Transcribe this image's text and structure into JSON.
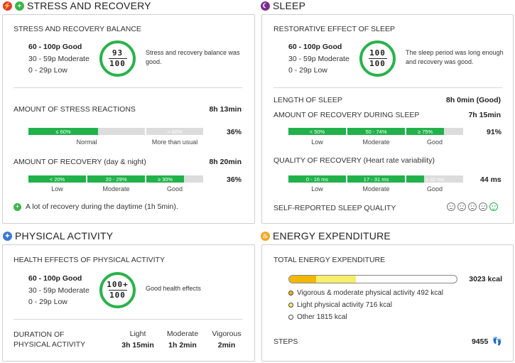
{
  "stress": {
    "title": "STRESS AND RECOVERY",
    "balance_heading": "STRESS AND RECOVERY BALANCE",
    "scale": [
      "60 - 100p Good",
      "30 - 59p Moderate",
      "0 - 29p Low"
    ],
    "score_top": "93",
    "score_bottom": "100",
    "score_note": "Stress and recovery balance was good.",
    "stress_reactions_label": "AMOUNT OF STRESS REACTIONS",
    "stress_reactions_value": "8h 13min",
    "stress_bar": {
      "seg1": "≤ 60%",
      "seg2": "> 60%",
      "cap1": "Normal",
      "cap2": "More than usual",
      "percent": "36%",
      "fill_fraction": 0.36
    },
    "recovery_label": "AMOUNT OF RECOVERY (day & night)",
    "recovery_value": "8h 20min",
    "recovery_bar": {
      "seg1": "< 20%",
      "seg2": "20 - 29%",
      "seg3": "≥ 30%",
      "cap1": "Low",
      "cap2": "Moderate",
      "cap3": "Good",
      "percent": "36%",
      "fill_fraction": 0.36
    },
    "tip": "A lot of recovery during the daytime (1h 5min)."
  },
  "sleep": {
    "title": "SLEEP",
    "restorative_heading": "RESTORATIVE EFFECT OF SLEEP",
    "scale": [
      "60 - 100p Good",
      "30 - 59p Moderate",
      "0 - 29p Low"
    ],
    "score_top": "100",
    "score_bottom": "100",
    "score_note": "The sleep period was long enough and recovery was good.",
    "length_label": "LENGTH OF SLEEP",
    "length_value": "8h 0min (Good)",
    "recovery_label": "AMOUNT OF RECOVERY DURING SLEEP",
    "recovery_value": "7h 15min",
    "recovery_bar": {
      "seg1": "< 50%",
      "seg2": "50 - 74%",
      "seg3": "≥ 75%",
      "cap1": "Low",
      "cap2": "Moderate",
      "cap3": "Good",
      "percent": "91%",
      "fill_fraction": 0.91
    },
    "quality_label": "QUALITY OF RECOVERY (Heart rate variability)",
    "quality_bar": {
      "seg1": "0 - 16 ms",
      "seg2": "17 - 31 ms",
      "seg3": "≥ 32 ms",
      "cap1": "Low",
      "cap2": "Moderate",
      "cap3": "Good",
      "value": "44 ms",
      "fill_fraction": 0.78
    },
    "self_reported_label": "SELF-REPORTED SLEEP QUALITY",
    "self_reported_selected_index": 4
  },
  "activity": {
    "title": "PHYSICAL ACTIVITY",
    "health_heading": "HEALTH EFFECTS OF PHYSICAL ACTIVITY",
    "scale": [
      "60 - 100p Good",
      "30 - 59p Moderate",
      "0 - 29p Low"
    ],
    "score_top": "100+",
    "score_bottom": "100",
    "score_note": "Good health effects",
    "duration_label_1": "DURATION OF",
    "duration_label_2": "PHYSICAL ACTIVITY",
    "cols": [
      {
        "label": "Light",
        "value": "3h 15min"
      },
      {
        "label": "Moderate",
        "value": "1h 2min"
      },
      {
        "label": "Vigorous",
        "value": "2min"
      }
    ]
  },
  "energy": {
    "title": "ENERGY EXPENDITURE",
    "total_heading": "TOTAL ENERGY EXPENDITURE",
    "total_value": "3023 kcal",
    "bar_fractions": {
      "vigorous": 0.163,
      "light": 0.237,
      "other": 0.6
    },
    "legend": [
      {
        "text": "Vigorous & moderate physical activity 492 kcal",
        "color": "#f2b705"
      },
      {
        "text": "Light physical activity 716 kcal",
        "color": "#f7ee6b"
      },
      {
        "text": "Other 1815 kcal",
        "color": "#ffffff"
      }
    ],
    "steps_label": "STEPS",
    "steps_value": "9455"
  },
  "colors": {
    "green": "#21b14a",
    "grey": "#dcdcdc",
    "ring": "#2bb24c"
  }
}
